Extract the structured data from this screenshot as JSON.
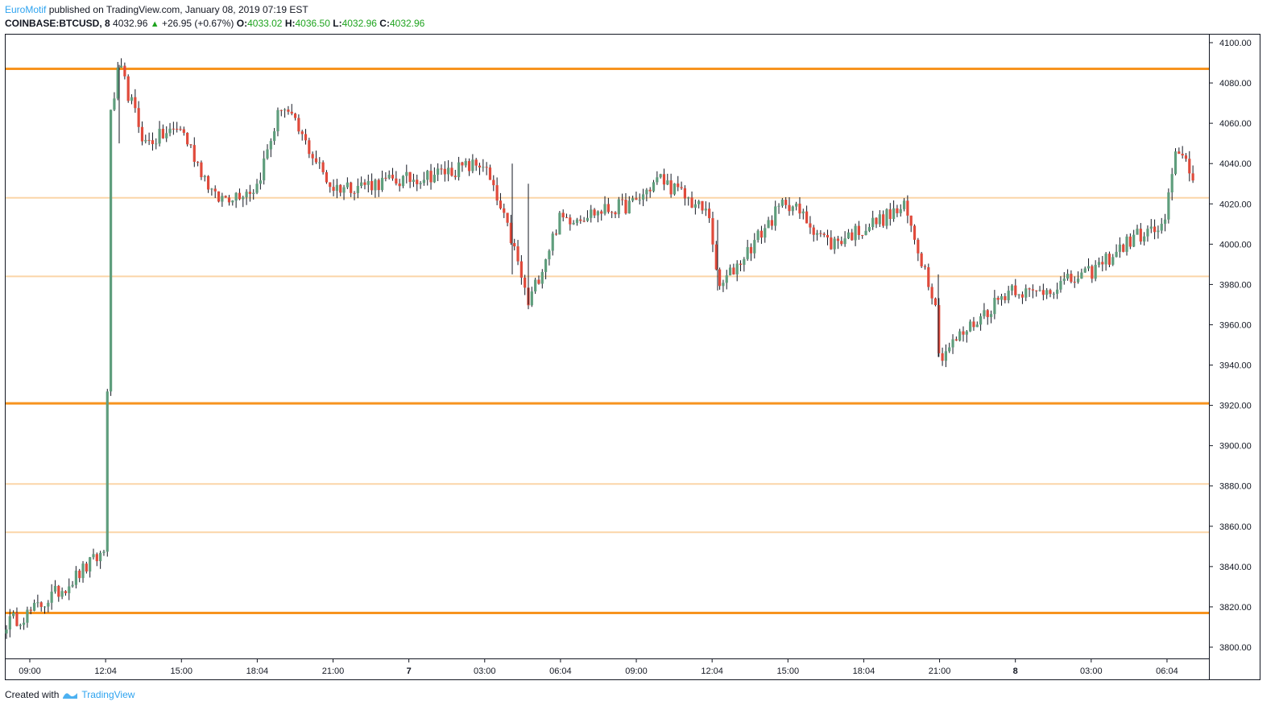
{
  "header": {
    "author": "EuroMotif",
    "published_text": "published on TradingView.com, January 08, 2019 07:19 EST",
    "symbol": "COINBASE:BTCUSD, 8",
    "last": "4032.96",
    "change": "+26.95 (+0.67%)",
    "open_label": "O:",
    "open": "4033.02",
    "high_label": "H:",
    "high": "4036.50",
    "low_label": "L:",
    "low": "4032.96",
    "close_label": "C:",
    "close": "4032.96"
  },
  "footer": {
    "created_with": "Created with",
    "brand": "TradingView"
  },
  "colors": {
    "up": "#5f9e7d",
    "down": "#e04a3b",
    "major_line": "#f7931e",
    "minor_line": "#fbd5a8",
    "axis": "#131722",
    "tv_blue": "#2ea3ef"
  },
  "chart_data": {
    "type": "candlestick",
    "symbol": "COINBASE:BTCUSD",
    "interval": "8",
    "ylim": [
      3790,
      4105
    ],
    "y_ticks": [
      "4100.00",
      "4080.00",
      "4060.00",
      "4040.00",
      "4020.00",
      "4000.00",
      "3980.00",
      "3960.00",
      "3940.00",
      "3920.00",
      "3900.00",
      "3880.00",
      "3860.00",
      "3840.00",
      "3820.00",
      "3800.00"
    ],
    "x_ticks": [
      "09:00",
      "12:04",
      "15:00",
      "18:04",
      "21:00",
      "7",
      "03:00",
      "06:04",
      "09:00",
      "12:04",
      "15:00",
      "18:04",
      "21:00",
      "8",
      "03:00",
      "06:04"
    ],
    "horizontal_levels": [
      {
        "price": 4087,
        "style": "major"
      },
      {
        "price": 4023,
        "style": "minor"
      },
      {
        "price": 3984,
        "style": "minor"
      },
      {
        "price": 3921,
        "style": "major"
      },
      {
        "price": 3881,
        "style": "minor"
      },
      {
        "price": 3857,
        "style": "minor"
      },
      {
        "price": 3817,
        "style": "major"
      }
    ],
    "key_points": [
      {
        "x": "08:00",
        "price": 3812
      },
      {
        "x": "09:00",
        "price": 3817
      },
      {
        "x": "10:30",
        "price": 3830
      },
      {
        "x": "12:04",
        "price": 3848
      },
      {
        "x": "12:30",
        "price": 4062
      },
      {
        "x": "13:00",
        "price": 4088
      },
      {
        "x": "14:00",
        "price": 4050
      },
      {
        "x": "15:00",
        "price": 4058
      },
      {
        "x": "16:30",
        "price": 4022
      },
      {
        "x": "18:04",
        "price": 4028
      },
      {
        "x": "19:00",
        "price": 4070
      },
      {
        "x": "21:00",
        "price": 4028
      },
      {
        "x": "7 00:00",
        "price": 4032
      },
      {
        "x": "7 03:00",
        "price": 4040
      },
      {
        "x": "7 04:30",
        "price": 4001
      },
      {
        "x": "7 05:00",
        "price": 3970
      },
      {
        "x": "7 06:04",
        "price": 4012
      },
      {
        "x": "7 09:00",
        "price": 4020
      },
      {
        "x": "7 10:30",
        "price": 4033
      },
      {
        "x": "7 12:04",
        "price": 4014
      },
      {
        "x": "7 12:30",
        "price": 3977
      },
      {
        "x": "7 15:00",
        "price": 4022
      },
      {
        "x": "7 18:04",
        "price": 4000
      },
      {
        "x": "7 20:00",
        "price": 4018
      },
      {
        "x": "7 21:00",
        "price": 3970
      },
      {
        "x": "7 21:00",
        "price": 3944
      },
      {
        "x": "8 00:00",
        "price": 3979
      },
      {
        "x": "8 01:00",
        "price": 3975
      },
      {
        "x": "8 03:00",
        "price": 3985
      },
      {
        "x": "8 05:00",
        "price": 4004
      },
      {
        "x": "8 06:04",
        "price": 4008
      },
      {
        "x": "8 06:30",
        "price": 4049
      },
      {
        "x": "8 07:19",
        "price": 4033
      }
    ]
  }
}
